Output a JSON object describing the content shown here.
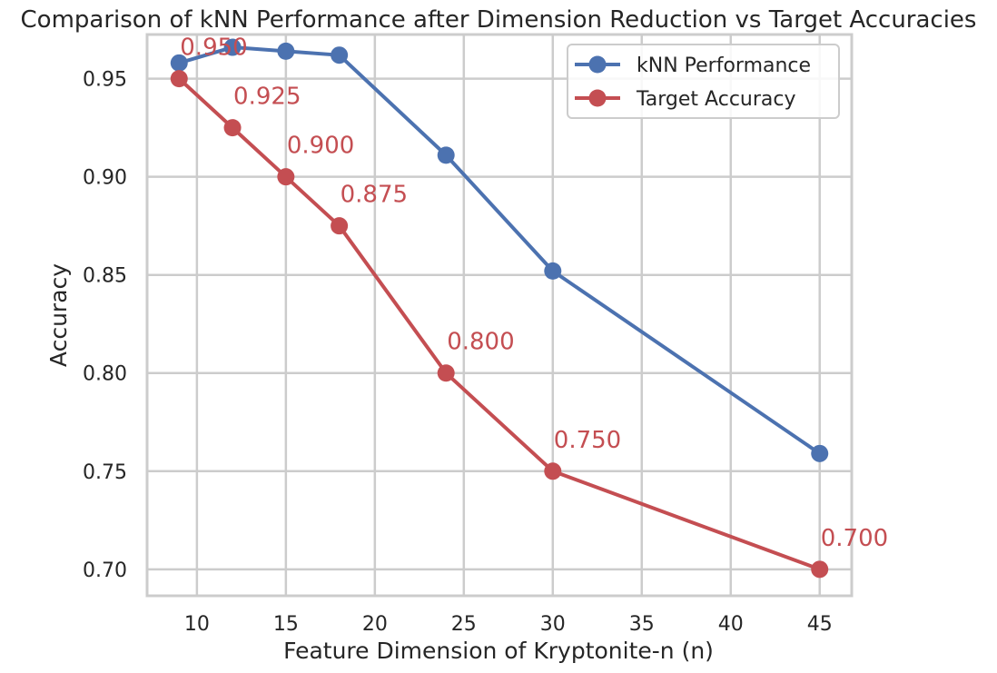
{
  "chart_data": {
    "type": "line",
    "title": "Comparison of kNN Performance after Dimension Reduction vs Target Accuracies",
    "xlabel": "Feature Dimension of Kryptonite-n (n)",
    "ylabel": "Accuracy",
    "x": [
      9,
      12,
      15,
      18,
      24,
      30,
      45
    ],
    "xlim": [
      7.2,
      46.8
    ],
    "ylim": [
      0.6865,
      0.9725
    ],
    "xticks": [
      10,
      15,
      20,
      25,
      30,
      35,
      40,
      45
    ],
    "yticks": [
      0.7,
      0.75,
      0.8,
      0.85,
      0.9,
      0.95
    ],
    "ytick_labels": [
      "0.70",
      "0.75",
      "0.80",
      "0.85",
      "0.90",
      "0.95"
    ],
    "grid": true,
    "legend_position": "top-right",
    "series": [
      {
        "name": "kNN Performance",
        "color": "#4c72b0",
        "values": [
          0.958,
          0.966,
          0.964,
          0.962,
          0.911,
          0.852,
          0.759
        ]
      },
      {
        "name": "Target Accuracy",
        "color": "#c44e52",
        "values": [
          0.95,
          0.925,
          0.9,
          0.875,
          0.8,
          0.75,
          0.7
        ],
        "data_labels": [
          "0.950",
          "0.925",
          "0.900",
          "0.875",
          "0.800",
          "0.750",
          "0.700"
        ]
      }
    ]
  }
}
